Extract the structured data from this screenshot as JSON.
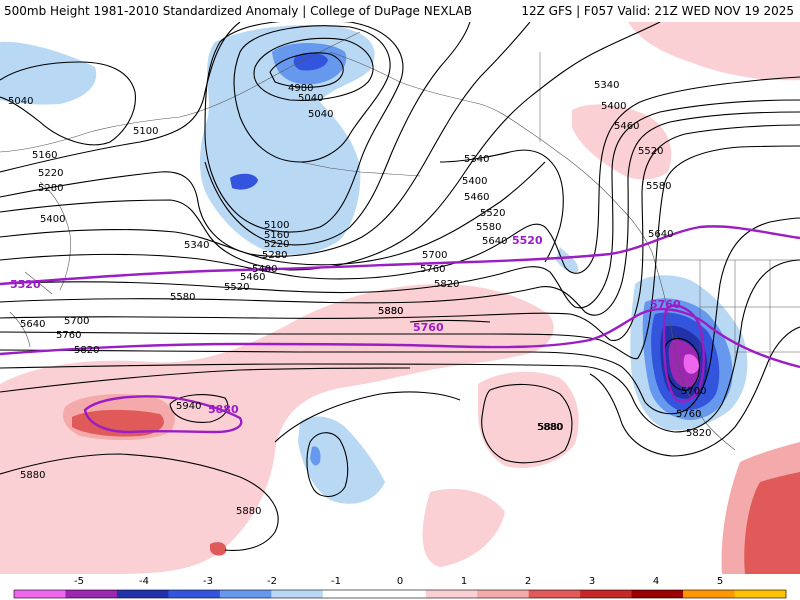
{
  "header": {
    "left": "500mb Height 1981-2010 Standardized Anomaly | College of DuPage NEXLAB",
    "right": "12Z GFS | F057 Valid: 21Z WED NOV 19 2025"
  },
  "contour_labels": {
    "black": [
      "5040",
      "4980",
      "5040",
      "5040",
      "5100",
      "5160",
      "5220",
      "5280",
      "5400",
      "5340",
      "5160",
      "5100",
      "5220",
      "5280",
      "5400",
      "5460",
      "5520",
      "5580",
      "5640",
      "5700",
      "5760",
      "5820",
      "5880",
      "5940",
      "5880",
      "5880",
      "5880",
      "5340",
      "5400",
      "5460",
      "5520",
      "5580",
      "5640",
      "5700",
      "5760",
      "5820",
      "5880",
      "5340",
      "5400",
      "5460",
      "5520",
      "5580",
      "5640",
      "5700",
      "5760",
      "5820",
      "5880"
    ],
    "purple": [
      "5520",
      "5520",
      "5760",
      "5760",
      "5880"
    ]
  },
  "colorbar": {
    "ticks": [
      "-5",
      "-4",
      "-3",
      "-2",
      "-1",
      "0",
      "1",
      "2",
      "3",
      "4",
      "5"
    ],
    "colors": [
      "#ee66ee",
      "#9c27b0",
      "#2233aa",
      "#3355dd",
      "#6699ee",
      "#b8d8f4",
      "#ffffff",
      "#ffffff",
      "#fbd0d4",
      "#f4aaaa",
      "#e05a5a",
      "#c62828",
      "#990000",
      "#ff9800",
      "#ffc107"
    ]
  },
  "colors": {
    "land_lines": "#555555",
    "contour": "#000000",
    "reference_contour": "#9b1dc4",
    "neg_anom": "#b8d8f4",
    "pos_anom": "#fbd0d4"
  }
}
